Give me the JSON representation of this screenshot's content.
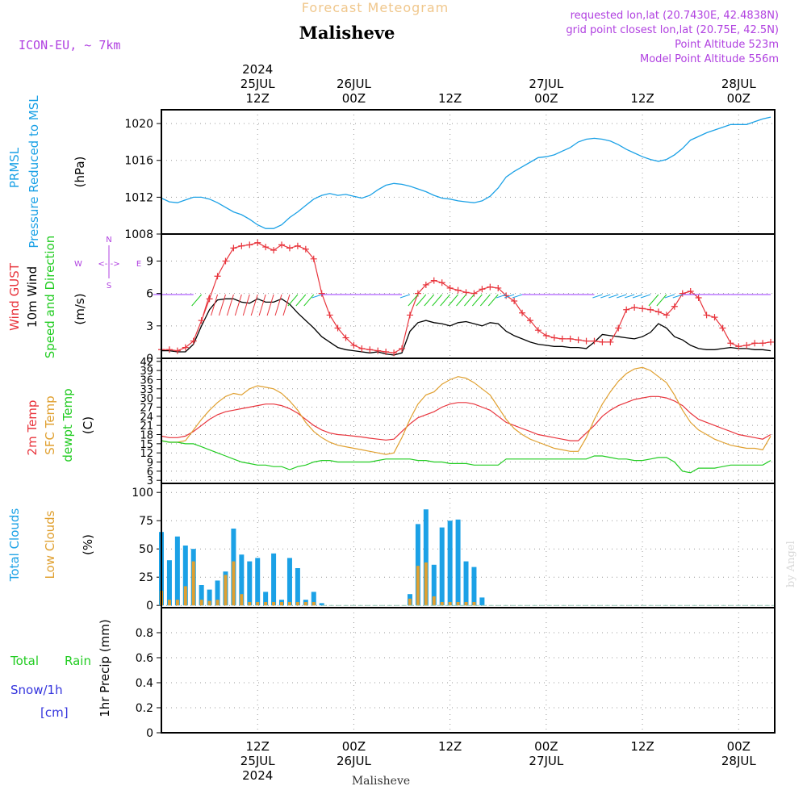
{
  "header": {
    "super_title": "Forecast Meteogram",
    "location": "Malisheve",
    "model": "ICON-EU, ~ 7km",
    "requested": "requested lon,lat (20.7430E, 42.4838N)",
    "grid_point": "grid point closest lon,lat (20.75E, 42.5N)",
    "point_altitude": "Point Altitude 523m",
    "model_altitude": "Model Point Altitude 556m",
    "footer_location": "Malisheve",
    "watermark": "by Angel"
  },
  "time_axis": {
    "top_labels": [
      {
        "hour": 12,
        "lines": [
          "2024",
          "25JUL",
          "12Z"
        ]
      },
      {
        "hour": 24,
        "lines": [
          "26JUL",
          "00Z"
        ]
      },
      {
        "hour": 36,
        "lines": [
          "12Z"
        ]
      },
      {
        "hour": 48,
        "lines": [
          "27JUL",
          "00Z"
        ]
      },
      {
        "hour": 60,
        "lines": [
          "12Z"
        ]
      },
      {
        "hour": 72,
        "lines": [
          "28JUL",
          "00Z"
        ]
      }
    ],
    "bottom_labels": [
      {
        "hour": 12,
        "lines": [
          "12Z",
          "25JUL",
          "2024"
        ]
      },
      {
        "hour": 24,
        "lines": [
          "00Z",
          "26JUL"
        ]
      },
      {
        "hour": 36,
        "lines": [
          "12Z"
        ]
      },
      {
        "hour": 48,
        "lines": [
          "00Z",
          "27JUL"
        ]
      },
      {
        "hour": 60,
        "lines": [
          "12Z"
        ]
      },
      {
        "hour": 72,
        "lines": [
          "00Z",
          "28JUL"
        ]
      }
    ],
    "x_range_hours": [
      0,
      76.5
    ]
  },
  "panels": {
    "pressure": {
      "labels": [
        {
          "text": "PRMSL",
          "color": "#1ba1e6"
        },
        {
          "text": "Pressure Reduced to MSL",
          "color": "#1ba1e6"
        },
        {
          "text": "(hPa)",
          "color": "#000000"
        }
      ],
      "ticks": [
        "1008",
        "1012",
        "1016",
        "1020"
      ]
    },
    "wind": {
      "labels": [
        {
          "text": "Wind GUST",
          "color": "#e8343c"
        },
        {
          "text": "10m Wind",
          "color": "#000000"
        },
        {
          "text": "Speed and Direction",
          "color": "#22cc22"
        },
        {
          "text": "(m/s)",
          "color": "#000000"
        }
      ],
      "ticks": [
        "0",
        "3",
        "6",
        "9"
      ],
      "compass": {
        "n": "N",
        "s": "S",
        "w": "W",
        "e": "E",
        "v_glyph": "|\n-\n|",
        "h_glyph": "<-|->"
      }
    },
    "temp": {
      "labels": [
        {
          "text": "2m Temp",
          "color": "#e8343c"
        },
        {
          "text": "SFC Temp",
          "color": "#e0a030"
        },
        {
          "text": "dewpt Temp",
          "color": "#22cc22"
        },
        {
          "text": "(C)",
          "color": "#000000"
        }
      ],
      "ticks": [
        "3",
        "6",
        "9",
        "12",
        "15",
        "18",
        "21",
        "24",
        "27",
        "30",
        "33",
        "36",
        "39",
        "42"
      ]
    },
    "clouds": {
      "labels": [
        {
          "text": "Total Clouds",
          "color": "#1ba1e6"
        },
        {
          "text": "Low Clouds",
          "color": "#e0a030"
        },
        {
          "text": "(%)",
          "color": "#000000"
        }
      ],
      "ticks": [
        "0",
        "25",
        "50",
        "75",
        "100"
      ]
    },
    "precip": {
      "labels": [
        {
          "text": "Total",
          "color": "#22cc22"
        },
        {
          "text": "Rain",
          "color": "#22cc22"
        },
        {
          "text": "Snow/1h",
          "color": "#3333dd"
        },
        {
          "text": "[cm]",
          "color": "#3333dd"
        },
        {
          "text": "1hr Precip (mm)",
          "color": "#000000"
        }
      ],
      "ticks": [
        "0",
        "0.2",
        "0.4",
        "0.6",
        "0.8"
      ]
    }
  },
  "colors": {
    "pressure": "#1ba1e6",
    "gust": "#e8343c",
    "wind": "#000000",
    "t2m": "#e8343c",
    "tsfc": "#e0a030",
    "dewpt": "#22cc22",
    "total_clouds": "#1ba1e6",
    "low_clouds": "#e0a030",
    "super_title": "#f0c78c",
    "info": "#b040e0"
  },
  "chart_data": [
    {
      "type": "line",
      "name": "pressure",
      "ylim": [
        1008,
        1021.5
      ],
      "x": [
        0,
        1,
        2,
        3,
        4,
        5,
        6,
        7,
        8,
        9,
        10,
        11,
        12,
        13,
        14,
        15,
        16,
        17,
        18,
        19,
        20,
        21,
        22,
        23,
        24,
        25,
        26,
        27,
        28,
        29,
        30,
        31,
        32,
        33,
        34,
        35,
        36,
        37,
        38,
        39,
        40,
        41,
        42,
        43,
        44,
        45,
        46,
        47,
        48,
        49,
        50,
        51,
        52,
        53,
        54,
        55,
        56,
        57,
        58,
        59,
        60,
        61,
        62,
        63,
        64,
        65,
        66,
        67,
        68,
        69,
        70,
        71,
        72,
        73,
        74,
        75,
        76
      ],
      "series": [
        {
          "name": "PRMSL",
          "values": [
            1011.9,
            1011.5,
            1011.4,
            1011.7,
            1012.0,
            1012.0,
            1011.8,
            1011.4,
            1010.9,
            1010.4,
            1010.1,
            1009.6,
            1009.0,
            1008.6,
            1008.6,
            1009.0,
            1009.8,
            1010.4,
            1011.1,
            1011.8,
            1012.2,
            1012.4,
            1012.2,
            1012.3,
            1012.1,
            1011.9,
            1012.2,
            1012.8,
            1013.3,
            1013.5,
            1013.4,
            1013.2,
            1012.9,
            1012.6,
            1012.2,
            1011.9,
            1011.8,
            1011.6,
            1011.5,
            1011.4,
            1011.6,
            1012.1,
            1013.0,
            1014.2,
            1014.8,
            1015.3,
            1015.8,
            1016.3,
            1016.4,
            1016.6,
            1017.0,
            1017.4,
            1018.0,
            1018.3,
            1018.4,
            1018.3,
            1018.1,
            1017.7,
            1017.2,
            1016.8,
            1016.4,
            1016.1,
            1015.9,
            1016.1,
            1016.6,
            1017.3,
            1018.2,
            1018.6,
            1019.0,
            1019.3,
            1019.6,
            1019.9,
            1019.9,
            1019.9,
            1020.2,
            1020.5,
            1020.7
          ]
        }
      ]
    },
    {
      "type": "line",
      "name": "wind",
      "ylim": [
        0,
        11.5
      ],
      "x": [
        0,
        1,
        2,
        3,
        4,
        5,
        6,
        7,
        8,
        9,
        10,
        11,
        12,
        13,
        14,
        15,
        16,
        17,
        18,
        19,
        20,
        21,
        22,
        23,
        24,
        25,
        26,
        27,
        28,
        29,
        30,
        31,
        32,
        33,
        34,
        35,
        36,
        37,
        38,
        39,
        40,
        41,
        42,
        43,
        44,
        45,
        46,
        47,
        48,
        49,
        50,
        51,
        52,
        53,
        54,
        55,
        56,
        57,
        58,
        59,
        60,
        61,
        62,
        63,
        64,
        65,
        66,
        67,
        68,
        69,
        70,
        71,
        72,
        73,
        74,
        75,
        76
      ],
      "series": [
        {
          "name": "Wind GUST",
          "values": [
            0.8,
            0.8,
            0.7,
            1.0,
            1.6,
            3.5,
            5.5,
            7.6,
            9.0,
            10.2,
            10.4,
            10.5,
            10.7,
            10.3,
            10.0,
            10.5,
            10.2,
            10.4,
            10.1,
            9.2,
            6.0,
            4.0,
            2.8,
            1.9,
            1.2,
            0.9,
            0.8,
            0.7,
            0.6,
            0.5,
            0.9,
            4.0,
            6.0,
            6.8,
            7.2,
            7.0,
            6.5,
            6.3,
            6.1,
            6.0,
            6.4,
            6.6,
            6.5,
            5.8,
            5.3,
            4.2,
            3.5,
            2.6,
            2.1,
            1.9,
            1.8,
            1.8,
            1.7,
            1.6,
            1.6,
            1.5,
            1.5,
            2.8,
            4.5,
            4.7,
            4.6,
            4.5,
            4.3,
            4.0,
            4.8,
            6.0,
            6.2,
            5.6,
            4.0,
            3.8,
            2.8,
            1.4,
            1.1,
            1.2,
            1.4,
            1.4,
            1.5
          ]
        },
        {
          "name": "10m Wind",
          "values": [
            0.7,
            0.7,
            0.6,
            0.6,
            1.3,
            3.0,
            4.5,
            5.4,
            5.5,
            5.5,
            5.2,
            5.1,
            5.5,
            5.2,
            5.2,
            5.5,
            5.0,
            4.2,
            3.5,
            2.8,
            2.0,
            1.5,
            1.0,
            0.8,
            0.7,
            0.6,
            0.5,
            0.6,
            0.4,
            0.3,
            0.5,
            2.5,
            3.3,
            3.5,
            3.3,
            3.2,
            3.0,
            3.3,
            3.4,
            3.2,
            3.0,
            3.3,
            3.2,
            2.5,
            2.1,
            1.8,
            1.5,
            1.3,
            1.2,
            1.1,
            1.1,
            1.0,
            1.0,
            0.9,
            1.5,
            2.2,
            2.1,
            2.0,
            1.9,
            1.8,
            2.0,
            2.4,
            3.2,
            2.8,
            2.0,
            1.7,
            1.2,
            0.9,
            0.8,
            0.8,
            0.9,
            1.0,
            0.9,
            0.9,
            0.8,
            0.8,
            0.7
          ]
        }
      ]
    },
    {
      "type": "line",
      "name": "temperature",
      "ylim": [
        2,
        43
      ],
      "x": [
        0,
        1,
        2,
        3,
        4,
        5,
        6,
        7,
        8,
        9,
        10,
        11,
        12,
        13,
        14,
        15,
        16,
        17,
        18,
        19,
        20,
        21,
        22,
        23,
        24,
        25,
        26,
        27,
        28,
        29,
        30,
        31,
        32,
        33,
        34,
        35,
        36,
        37,
        38,
        39,
        40,
        41,
        42,
        43,
        44,
        45,
        46,
        47,
        48,
        49,
        50,
        51,
        52,
        53,
        54,
        55,
        56,
        57,
        58,
        59,
        60,
        61,
        62,
        63,
        64,
        65,
        66,
        67,
        68,
        69,
        70,
        71,
        72,
        73,
        74,
        75,
        76
      ],
      "series": [
        {
          "name": "2m Temp",
          "values": [
            17.5,
            17.0,
            17.0,
            17.5,
            19.0,
            21.0,
            23.0,
            24.5,
            25.5,
            26.0,
            26.5,
            27.0,
            27.5,
            28.0,
            28.0,
            27.5,
            26.5,
            25.0,
            23.0,
            21.0,
            19.5,
            18.5,
            18.0,
            17.8,
            17.5,
            17.2,
            16.8,
            16.5,
            16.2,
            16.5,
            19.0,
            21.5,
            23.5,
            24.5,
            25.5,
            27.0,
            28.0,
            28.5,
            28.5,
            28.0,
            27.0,
            26.0,
            24.0,
            22.0,
            21.0,
            20.0,
            19.0,
            18.0,
            17.5,
            17.0,
            16.5,
            16.0,
            16.0,
            18.5,
            21.0,
            24.0,
            26.0,
            27.5,
            28.5,
            29.5,
            30.0,
            30.5,
            30.5,
            30.0,
            29.0,
            27.5,
            25.0,
            23.0,
            22.0,
            21.0,
            20.0,
            19.0,
            18.0,
            17.5,
            17.0,
            16.5,
            18.0
          ]
        },
        {
          "name": "SFC Temp",
          "values": [
            16.0,
            15.5,
            15.5,
            16.0,
            19.5,
            23.0,
            26.0,
            28.5,
            30.5,
            31.5,
            31.0,
            33.0,
            34.0,
            33.5,
            33.0,
            31.5,
            29.0,
            26.0,
            22.0,
            19.0,
            17.0,
            15.5,
            14.5,
            14.0,
            13.5,
            13.0,
            12.5,
            12.0,
            11.5,
            12.0,
            17.0,
            23.0,
            28.0,
            31.0,
            32.0,
            34.5,
            36.0,
            37.0,
            36.5,
            35.0,
            33.0,
            31.0,
            27.0,
            23.0,
            20.0,
            18.0,
            16.5,
            15.5,
            14.5,
            13.5,
            13.0,
            12.5,
            12.5,
            17.0,
            23.0,
            28.0,
            32.0,
            35.5,
            38.0,
            39.5,
            40.0,
            39.0,
            37.0,
            35.0,
            31.0,
            26.0,
            22.0,
            19.5,
            18.0,
            16.5,
            15.5,
            14.5,
            14.0,
            13.5,
            13.5,
            13.0,
            17.5
          ]
        },
        {
          "name": "dewpt Temp",
          "values": [
            16.0,
            15.5,
            15.5,
            15.0,
            15.0,
            14.0,
            13.0,
            12.0,
            11.0,
            10.0,
            9.0,
            8.5,
            8.0,
            8.0,
            7.5,
            7.5,
            6.5,
            7.5,
            8.0,
            9.0,
            9.5,
            9.5,
            9.0,
            9.0,
            9.0,
            9.0,
            9.0,
            9.5,
            10.0,
            10.0,
            10.0,
            10.0,
            9.5,
            9.5,
            9.0,
            9.0,
            8.5,
            8.5,
            8.5,
            8.0,
            8.0,
            8.0,
            8.0,
            10.0,
            10.0,
            10.0,
            10.0,
            10.0,
            10.0,
            10.0,
            10.0,
            10.0,
            10.0,
            10.0,
            11.0,
            11.0,
            10.5,
            10.0,
            10.0,
            9.5,
            9.5,
            10.0,
            10.5,
            10.5,
            9.0,
            6.0,
            5.5,
            7.0,
            7.0,
            7.0,
            7.5,
            8.0,
            8.0,
            8.0,
            8.0,
            8.0,
            9.5
          ]
        }
      ]
    },
    {
      "type": "bar",
      "name": "clouds",
      "ylim": [
        -2,
        108
      ],
      "x": [
        0,
        1,
        2,
        3,
        4,
        5,
        6,
        7,
        8,
        9,
        10,
        11,
        12,
        13,
        14,
        15,
        16,
        17,
        18,
        19,
        20,
        21,
        22,
        23,
        24,
        25,
        26,
        27,
        28,
        29,
        30,
        31,
        32,
        33,
        34,
        35,
        36,
        37,
        38,
        39,
        40
      ],
      "series": [
        {
          "name": "Total Clouds",
          "values": [
            65,
            40,
            61,
            53,
            50,
            18,
            14,
            22,
            30,
            68,
            45,
            39,
            42,
            12,
            46,
            5,
            42,
            33,
            5,
            12,
            2,
            0,
            0,
            0,
            0,
            0,
            0,
            0,
            0,
            0,
            0,
            10,
            72,
            85,
            36,
            69,
            75,
            76,
            39,
            34,
            7
          ]
        },
        {
          "name": "Low Clouds",
          "values": [
            13,
            5,
            5,
            17,
            39,
            5,
            4,
            5,
            27,
            39,
            10,
            3,
            3,
            3,
            3,
            3,
            3,
            3,
            3,
            3,
            0,
            0,
            0,
            0,
            0,
            0,
            0,
            0,
            0,
            0,
            0,
            6,
            35,
            38,
            8,
            3,
            3,
            3,
            3,
            3,
            0
          ]
        }
      ]
    },
    {
      "type": "bar",
      "name": "precipitation",
      "ylim": [
        0,
        1.0
      ],
      "series": [
        {
          "name": "Total Rain",
          "values": []
        },
        {
          "name": "Snow/1h",
          "values": []
        }
      ]
    }
  ]
}
